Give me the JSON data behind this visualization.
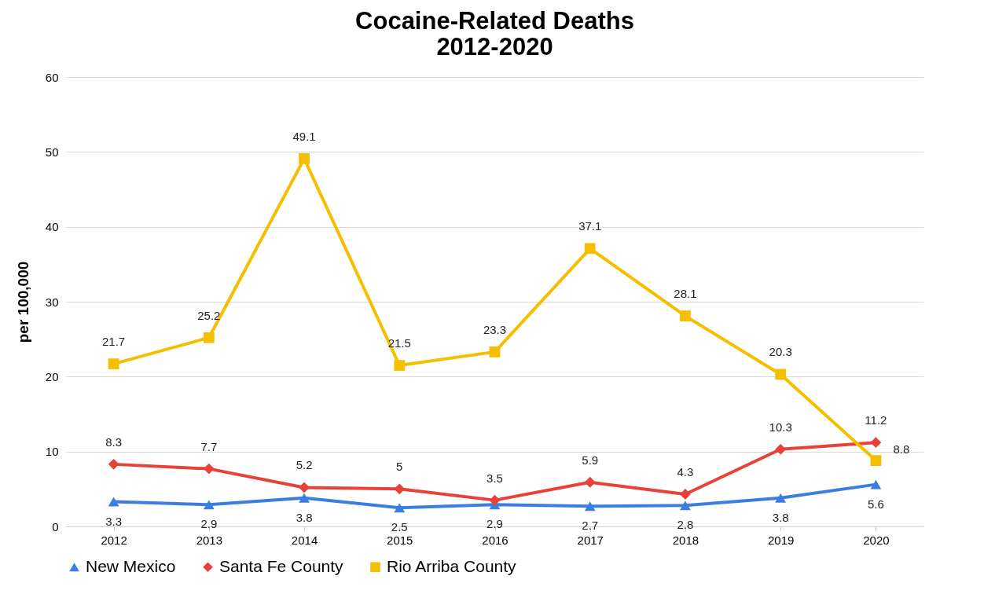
{
  "chart_data": {
    "type": "line",
    "title": "Cocaine-Related Deaths\n2012-2020",
    "ylabel": "per 100,000",
    "categories": [
      "2012",
      "2013",
      "2014",
      "2015",
      "2016",
      "2017",
      "2018",
      "2019",
      "2020"
    ],
    "series": [
      {
        "name": "New Mexico",
        "color": "#3c7ee0",
        "marker": "triangle",
        "values": [
          3.3,
          2.9,
          3.8,
          2.5,
          2.9,
          2.7,
          2.8,
          3.8,
          5.6
        ]
      },
      {
        "name": "Santa Fe County",
        "color": "#e8413a",
        "marker": "diamond",
        "values": [
          8.3,
          7.7,
          5.2,
          5,
          3.5,
          5.9,
          4.3,
          10.3,
          11.2
        ]
      },
      {
        "name": "Rio Arriba County",
        "color": "#f5bf00",
        "marker": "square",
        "values": [
          21.7,
          25.2,
          49.1,
          21.5,
          23.3,
          37.1,
          28.1,
          20.3,
          8.8
        ]
      }
    ],
    "ylim": [
      0,
      60
    ],
    "yticks": [
      0,
      10,
      20,
      30,
      40,
      50,
      60
    ],
    "grid": "y",
    "legend": "bottom",
    "data_labels": true,
    "line_style": "solid"
  }
}
